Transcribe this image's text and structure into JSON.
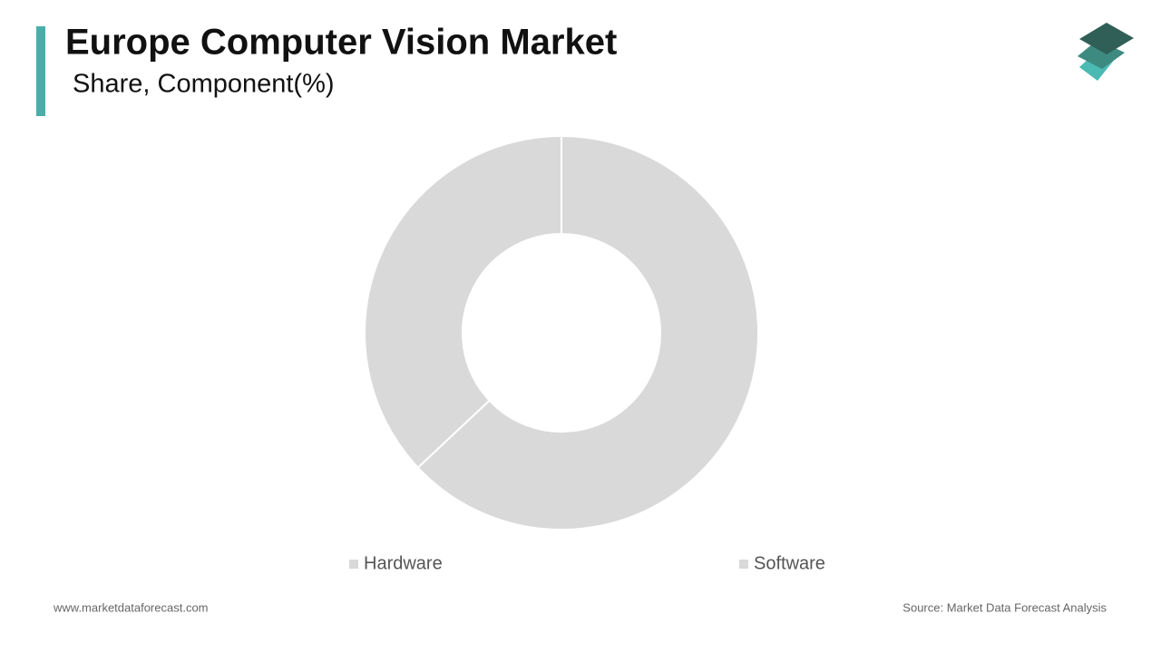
{
  "chart_data": {
    "type": "donut",
    "title": "Europe Computer Vision Market",
    "subtitle": "Share, Component(%)",
    "categories": [
      "Hardware",
      "Software"
    ],
    "values": [
      63,
      37
    ],
    "colors": [
      "#d9d9d9",
      "#d9d9d9"
    ],
    "website": "www.marketdataforecast.com",
    "source": "Source: Market Data Forecast Analysis"
  }
}
